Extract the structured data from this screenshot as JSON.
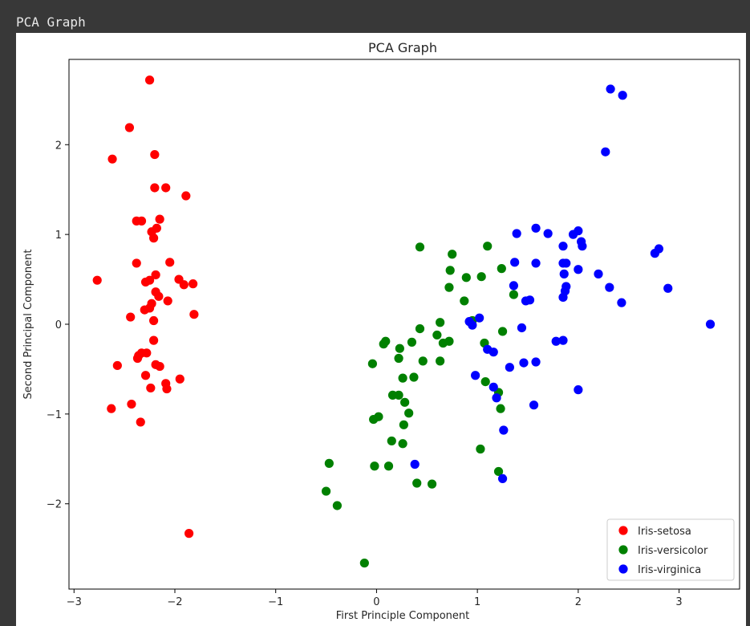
{
  "window": {
    "title": "PCA Graph"
  },
  "chart_data": {
    "type": "scatter",
    "title": "PCA Graph",
    "xlabel": "First Principle Component",
    "ylabel": "Second Principal Component",
    "xlim": [
      -3.05,
      3.6
    ],
    "ylim": [
      -2.95,
      2.95
    ],
    "xticks": [
      -3,
      -2,
      -1,
      0,
      1,
      2,
      3
    ],
    "xtick_labels": [
      "−3",
      "−2",
      "−1",
      "0",
      "1",
      "2",
      "3"
    ],
    "yticks": [
      -2,
      -1,
      0,
      1,
      2
    ],
    "ytick_labels": [
      "−2",
      "−1",
      "0",
      "1",
      "2"
    ],
    "grid": false,
    "legend_position": "bottom-right",
    "series": [
      {
        "name": "Iris-setosa",
        "color": "#ff0000",
        "points": [
          [
            -2.25,
            2.72
          ],
          [
            -2.45,
            2.19
          ],
          [
            -2.62,
            1.84
          ],
          [
            -2.2,
            1.89
          ],
          [
            -2.2,
            1.52
          ],
          [
            -2.09,
            1.52
          ],
          [
            -1.89,
            1.43
          ],
          [
            -2.38,
            1.15
          ],
          [
            -2.33,
            1.15
          ],
          [
            -2.15,
            1.17
          ],
          [
            -2.18,
            1.07
          ],
          [
            -2.23,
            1.03
          ],
          [
            -2.21,
            0.96
          ],
          [
            -2.05,
            0.69
          ],
          [
            -2.38,
            0.68
          ],
          [
            -2.19,
            0.55
          ],
          [
            -2.25,
            0.49
          ],
          [
            -2.29,
            0.47
          ],
          [
            -1.96,
            0.5
          ],
          [
            -1.91,
            0.44
          ],
          [
            -1.82,
            0.45
          ],
          [
            -2.77,
            0.49
          ],
          [
            -2.19,
            0.36
          ],
          [
            -2.16,
            0.31
          ],
          [
            -2.23,
            0.23
          ],
          [
            -2.07,
            0.26
          ],
          [
            -2.3,
            0.16
          ],
          [
            -2.25,
            0.18
          ],
          [
            -2.44,
            0.08
          ],
          [
            -2.21,
            0.04
          ],
          [
            -1.81,
            0.11
          ],
          [
            -2.21,
            -0.18
          ],
          [
            -2.33,
            -0.32
          ],
          [
            -2.28,
            -0.32
          ],
          [
            -2.36,
            -0.35
          ],
          [
            -2.37,
            -0.38
          ],
          [
            -2.19,
            -0.45
          ],
          [
            -2.15,
            -0.47
          ],
          [
            -2.57,
            -0.46
          ],
          [
            -2.29,
            -0.57
          ],
          [
            -1.95,
            -0.61
          ],
          [
            -2.09,
            -0.66
          ],
          [
            -2.08,
            -0.72
          ],
          [
            -2.24,
            -0.71
          ],
          [
            -2.43,
            -0.89
          ],
          [
            -2.63,
            -0.94
          ],
          [
            -2.34,
            -1.09
          ],
          [
            -1.86,
            -2.33
          ]
        ]
      },
      {
        "name": "Iris-versicolor",
        "color": "#008000",
        "points": [
          [
            0.43,
            0.86
          ],
          [
            1.1,
            0.87
          ],
          [
            0.75,
            0.78
          ],
          [
            0.73,
            0.6
          ],
          [
            1.24,
            0.62
          ],
          [
            0.89,
            0.52
          ],
          [
            1.04,
            0.53
          ],
          [
            0.72,
            0.41
          ],
          [
            1.36,
            0.33
          ],
          [
            0.87,
            0.26
          ],
          [
            0.63,
            0.02
          ],
          [
            0.95,
            0.04
          ],
          [
            0.43,
            -0.05
          ],
          [
            1.25,
            -0.08
          ],
          [
            0.6,
            -0.12
          ],
          [
            0.66,
            -0.21
          ],
          [
            0.35,
            -0.2
          ],
          [
            0.72,
            -0.19
          ],
          [
            0.09,
            -0.19
          ],
          [
            0.07,
            -0.22
          ],
          [
            0.23,
            -0.27
          ],
          [
            1.07,
            -0.21
          ],
          [
            0.22,
            -0.38
          ],
          [
            0.46,
            -0.41
          ],
          [
            0.63,
            -0.41
          ],
          [
            -0.04,
            -0.44
          ],
          [
            0.37,
            -0.59
          ],
          [
            0.26,
            -0.6
          ],
          [
            1.08,
            -0.64
          ],
          [
            0.28,
            -0.87
          ],
          [
            0.16,
            -0.79
          ],
          [
            0.22,
            -0.79
          ],
          [
            1.21,
            -0.76
          ],
          [
            1.23,
            -0.94
          ],
          [
            0.32,
            -0.99
          ],
          [
            0.02,
            -1.03
          ],
          [
            -0.03,
            -1.06
          ],
          [
            0.27,
            -1.12
          ],
          [
            0.15,
            -1.3
          ],
          [
            0.26,
            -1.33
          ],
          [
            1.03,
            -1.39
          ],
          [
            -0.47,
            -1.55
          ],
          [
            -0.02,
            -1.58
          ],
          [
            0.12,
            -1.58
          ],
          [
            1.21,
            -1.64
          ],
          [
            0.4,
            -1.77
          ],
          [
            0.55,
            -1.78
          ],
          [
            -0.5,
            -1.86
          ],
          [
            -0.39,
            -2.02
          ],
          [
            -0.12,
            -2.66
          ]
        ]
      },
      {
        "name": "Iris-virginica",
        "color": "#0000ff",
        "points": [
          [
            2.32,
            2.62
          ],
          [
            2.44,
            2.55
          ],
          [
            2.27,
            1.92
          ],
          [
            1.58,
            1.07
          ],
          [
            1.39,
            1.01
          ],
          [
            1.7,
            1.01
          ],
          [
            2.0,
            1.04
          ],
          [
            1.95,
            1.0
          ],
          [
            2.03,
            0.92
          ],
          [
            2.04,
            0.87
          ],
          [
            1.85,
            0.87
          ],
          [
            2.8,
            0.84
          ],
          [
            2.76,
            0.79
          ],
          [
            1.37,
            0.69
          ],
          [
            1.58,
            0.68
          ],
          [
            1.85,
            0.68
          ],
          [
            1.88,
            0.68
          ],
          [
            2.0,
            0.61
          ],
          [
            1.86,
            0.56
          ],
          [
            2.2,
            0.56
          ],
          [
            1.36,
            0.43
          ],
          [
            1.88,
            0.42
          ],
          [
            1.87,
            0.37
          ],
          [
            2.31,
            0.41
          ],
          [
            2.89,
            0.4
          ],
          [
            1.85,
            0.3
          ],
          [
            1.48,
            0.26
          ],
          [
            1.52,
            0.27
          ],
          [
            2.43,
            0.24
          ],
          [
            3.31,
            0.0
          ],
          [
            0.92,
            0.03
          ],
          [
            1.02,
            0.07
          ],
          [
            0.95,
            -0.01
          ],
          [
            1.44,
            -0.04
          ],
          [
            1.1,
            -0.28
          ],
          [
            1.16,
            -0.31
          ],
          [
            1.78,
            -0.19
          ],
          [
            1.85,
            -0.18
          ],
          [
            1.58,
            -0.42
          ],
          [
            1.46,
            -0.43
          ],
          [
            1.32,
            -0.48
          ],
          [
            0.98,
            -0.57
          ],
          [
            1.16,
            -0.7
          ],
          [
            2.0,
            -0.73
          ],
          [
            1.19,
            -0.82
          ],
          [
            1.56,
            -0.9
          ],
          [
            1.26,
            -1.18
          ],
          [
            0.38,
            -1.56
          ],
          [
            1.25,
            -1.72
          ]
        ]
      }
    ]
  }
}
